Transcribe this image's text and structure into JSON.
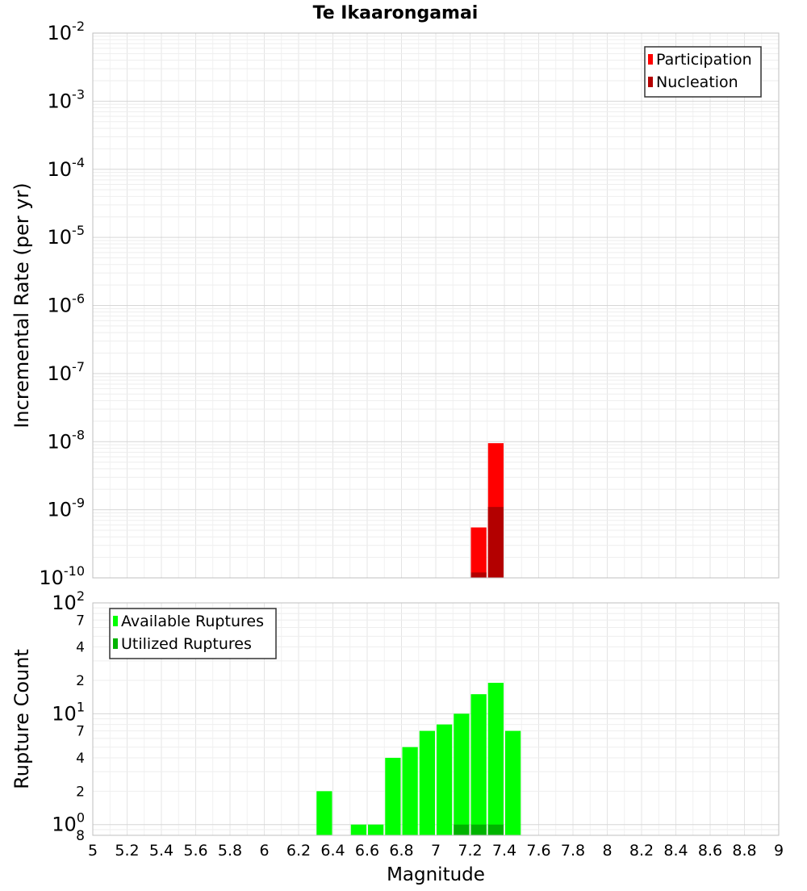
{
  "chart_data": [
    {
      "type": "bar",
      "title": "Te Ikaarongamai",
      "xlabel": "",
      "ylabel": "Incremental Rate (per yr)",
      "yscale": "log",
      "ylim": [
        1e-10,
        0.01
      ],
      "xlim": [
        5,
        9
      ],
      "grid": true,
      "legend_position": "top-right",
      "series": [
        {
          "name": "Participation",
          "color": "#ff0000",
          "bin_width": 0.1,
          "points": [
            {
              "x": 7.25,
              "y": 5.5e-10
            },
            {
              "x": 7.35,
              "y": 9.5e-09
            }
          ]
        },
        {
          "name": "Nucleation",
          "color": "#b30000",
          "bin_width": 0.1,
          "points": [
            {
              "x": 7.25,
              "y": 1.2e-10
            },
            {
              "x": 7.35,
              "y": 1.1e-09
            }
          ]
        }
      ],
      "y_ticks": [
        {
          "value": 0.01,
          "base": "10",
          "exp": "-2"
        },
        {
          "value": 0.001,
          "base": "10",
          "exp": "-3"
        },
        {
          "value": 0.0001,
          "base": "10",
          "exp": "-4"
        },
        {
          "value": 1e-05,
          "base": "10",
          "exp": "-5"
        },
        {
          "value": 1e-06,
          "base": "10",
          "exp": "-6"
        },
        {
          "value": 1e-07,
          "base": "10",
          "exp": "-7"
        },
        {
          "value": 1e-08,
          "base": "10",
          "exp": "-8"
        },
        {
          "value": 1e-09,
          "base": "10",
          "exp": "-9"
        },
        {
          "value": 1e-10,
          "base": "10",
          "exp": "-10"
        }
      ]
    },
    {
      "type": "bar",
      "title": "",
      "xlabel": "Magnitude",
      "ylabel": "Rupture Count",
      "yscale": "log",
      "ylim": [
        0.8,
        100
      ],
      "xlim": [
        5,
        9
      ],
      "grid": true,
      "legend_position": "top-left",
      "series": [
        {
          "name": "Available Ruptures",
          "color": "#00ff00",
          "bin_width": 0.1,
          "points": [
            {
              "x": 6.35,
              "y": 2
            },
            {
              "x": 6.55,
              "y": 1
            },
            {
              "x": 6.65,
              "y": 1
            },
            {
              "x": 6.75,
              "y": 4
            },
            {
              "x": 6.85,
              "y": 5
            },
            {
              "x": 6.95,
              "y": 7
            },
            {
              "x": 7.05,
              "y": 8
            },
            {
              "x": 7.15,
              "y": 10
            },
            {
              "x": 7.25,
              "y": 15
            },
            {
              "x": 7.35,
              "y": 19
            },
            {
              "x": 7.45,
              "y": 7
            }
          ]
        },
        {
          "name": "Utilized Ruptures",
          "color": "#00b300",
          "bin_width": 0.1,
          "points": [
            {
              "x": 7.15,
              "y": 1
            },
            {
              "x": 7.25,
              "y": 1
            },
            {
              "x": 7.35,
              "y": 1
            }
          ]
        }
      ],
      "y_ticks": [
        {
          "value": 100,
          "base": "10",
          "exp": "2",
          "major": true
        },
        {
          "value": 70,
          "base": "7",
          "exp": "",
          "major": false
        },
        {
          "value": 40,
          "base": "4",
          "exp": "",
          "major": false
        },
        {
          "value": 20,
          "base": "2",
          "exp": "",
          "major": false
        },
        {
          "value": 10,
          "base": "10",
          "exp": "1",
          "major": true
        },
        {
          "value": 7,
          "base": "7",
          "exp": "",
          "major": false
        },
        {
          "value": 4,
          "base": "4",
          "exp": "",
          "major": false
        },
        {
          "value": 2,
          "base": "2",
          "exp": "",
          "major": false
        },
        {
          "value": 1,
          "base": "10",
          "exp": "0",
          "major": true
        },
        {
          "value": 0.8,
          "base": "8",
          "exp": "",
          "major": false
        }
      ],
      "x_ticks": [
        "5",
        "5.2",
        "5.4",
        "5.6",
        "5.8",
        "6",
        "6.2",
        "6.4",
        "6.6",
        "6.8",
        "7",
        "7.2",
        "7.4",
        "7.6",
        "7.8",
        "8",
        "8.2",
        "8.4",
        "8.6",
        "8.8",
        "9"
      ]
    }
  ]
}
